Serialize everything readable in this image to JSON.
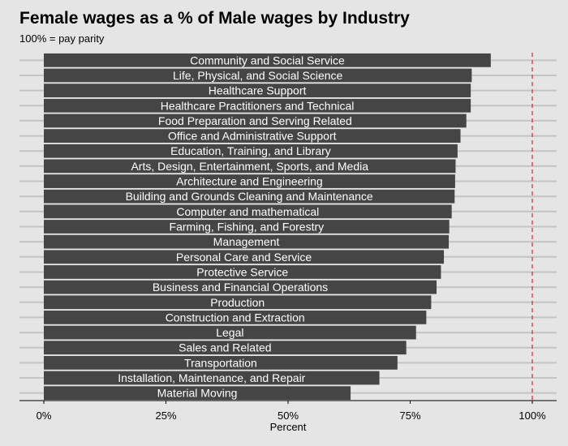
{
  "chart_data": {
    "type": "bar",
    "orientation": "horizontal",
    "title": "Female wages as a % of Male wages by Industry",
    "subtitle": "100% = pay parity",
    "xlabel": "Percent",
    "ylabel": "",
    "xlim": [
      0,
      1.05
    ],
    "x_ticks": [
      0,
      0.25,
      0.5,
      0.75,
      1.0
    ],
    "x_tick_labels": [
      "0%",
      "25%",
      "50%",
      "75%",
      "100%"
    ],
    "reference_line": {
      "value": 1.0,
      "style": "dashed",
      "color": "#e03030"
    },
    "bar_color": "#454545",
    "bar_label_color": "#ffffff",
    "grid": "horizontal",
    "categories": [
      "Community and Social Service",
      "Life, Physical, and Social Science",
      "Healthcare Support",
      "Healthcare Practitioners and Technical",
      "Food Preparation and Serving Related",
      "Office and Administrative Support",
      "Education, Training, and Library",
      "Arts, Design, Entertainment, Sports, and Media",
      "Architecture and Engineering",
      "Building and Grounds Cleaning and Maintenance",
      "Computer and mathematical",
      "Farming, Fishing, and Forestry",
      "Management",
      "Personal Care and Service",
      "Protective Service",
      "Business and Financial Operations",
      "Production",
      "Construction and Extraction",
      "Legal",
      "Sales and Related",
      "Transportation",
      "Installation, Maintenance, and Repair",
      "Material Moving"
    ],
    "values": [
      0.915,
      0.876,
      0.874,
      0.874,
      0.865,
      0.853,
      0.847,
      0.843,
      0.842,
      0.841,
      0.835,
      0.83,
      0.829,
      0.819,
      0.813,
      0.804,
      0.793,
      0.783,
      0.762,
      0.742,
      0.724,
      0.687,
      0.628
    ]
  }
}
